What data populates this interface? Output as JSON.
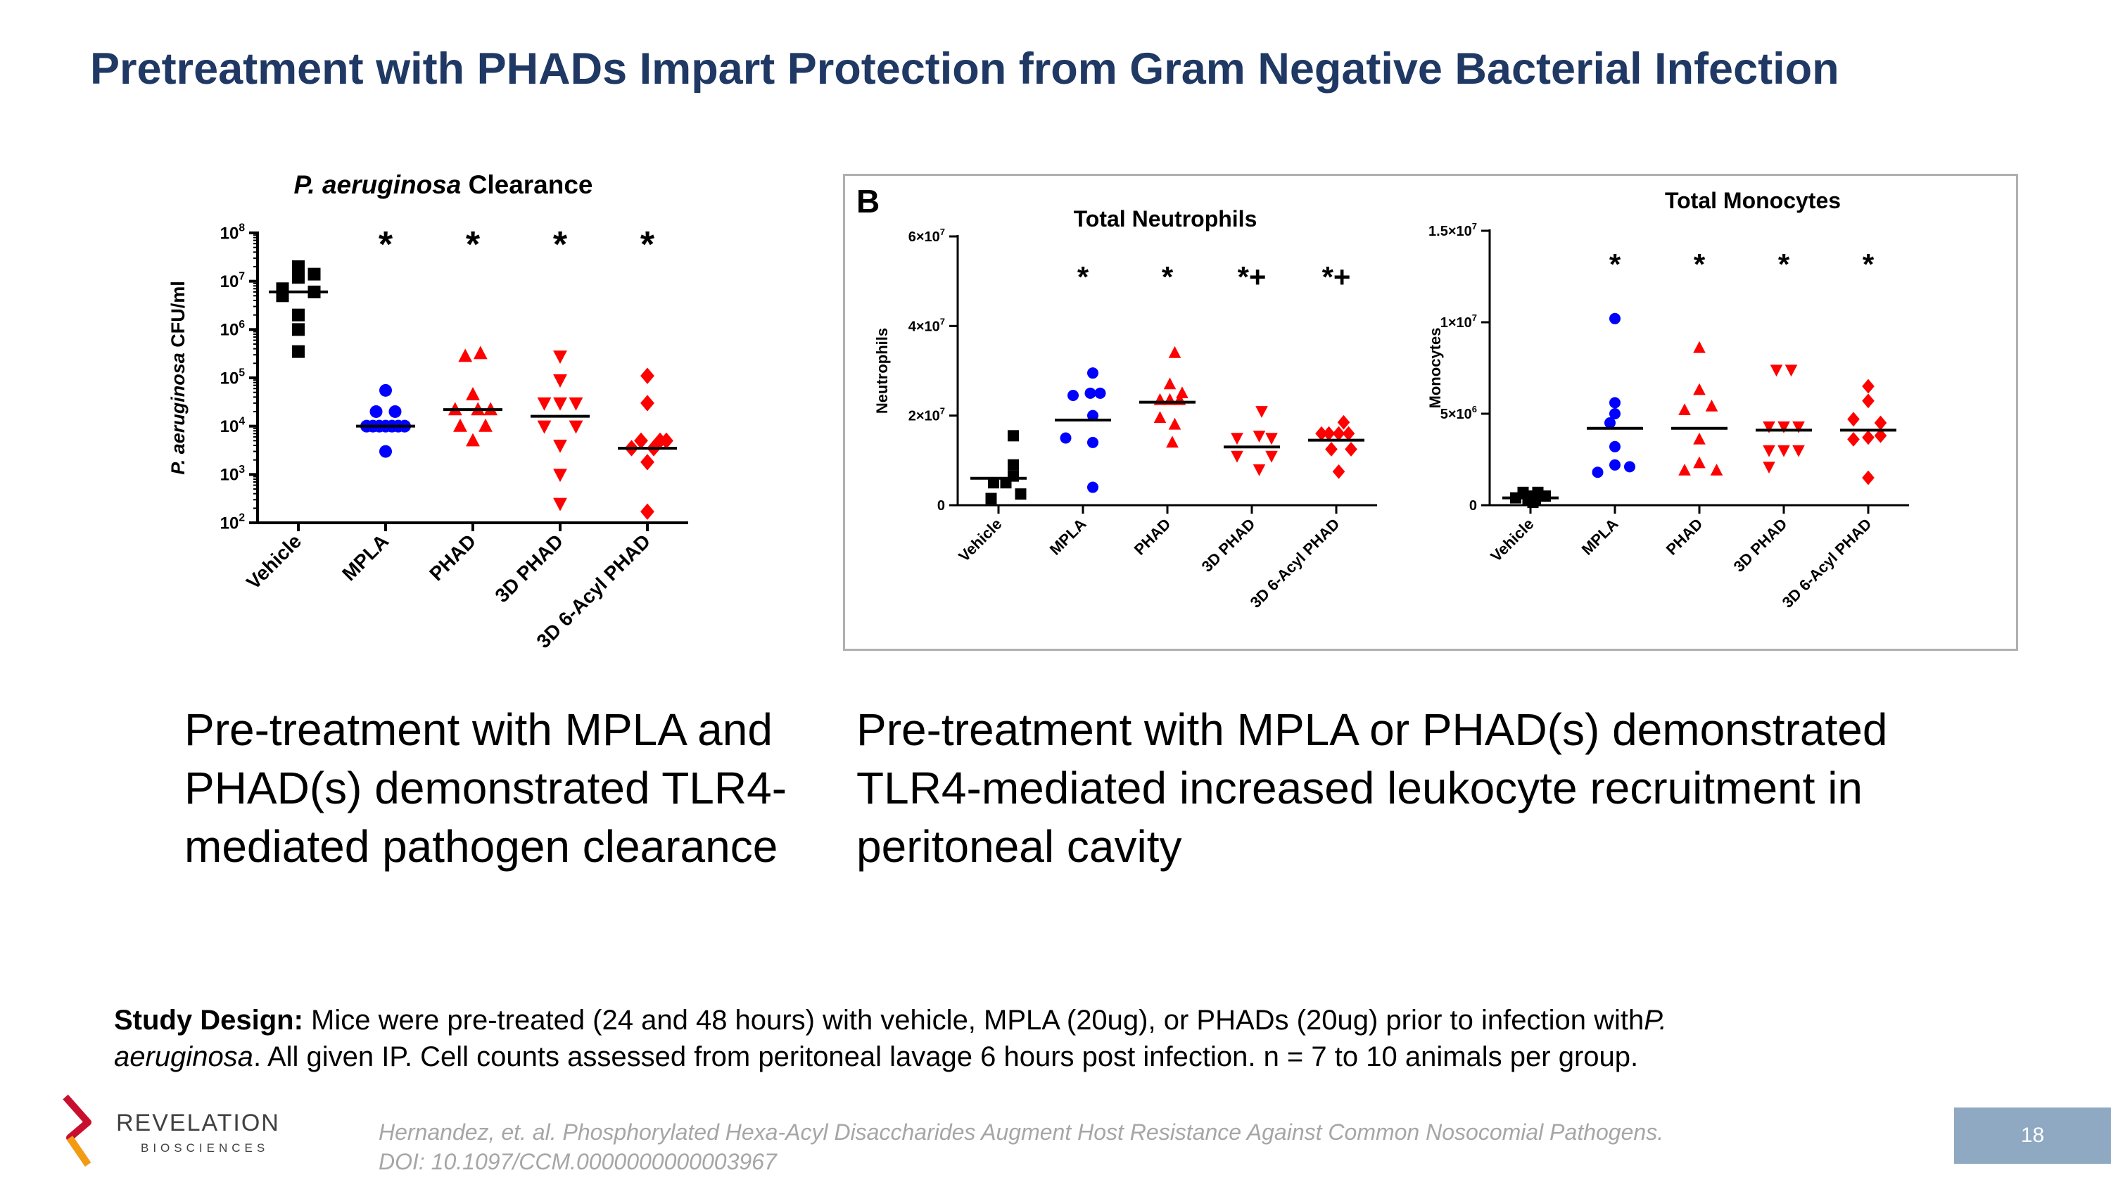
{
  "slide": {
    "title": "Pretreatment with PHADs Impart Protection from Gram Negative Bacterial Infection",
    "caption_left": "Pre-treatment with MPLA and PHAD(s) demonstrated TLR4-mediated pathogen clearance",
    "caption_right": "Pre-treatment with MPLA or PHAD(s) demonstrated TLR4-mediated increased leukocyte recruitment in peritoneal cavity",
    "study_label": "Study Design:",
    "study_text_1": " Mice were pre-treated (24 and 48 hours) with vehicle, MPLA (20ug), or PHADs (20ug) prior to infection with",
    "study_species_1": "P.",
    "study_species_2": "aeruginosa",
    "study_text_2": ".  All given IP.  Cell counts assessed from peritoneal lavage 6 hours post infection. n = 7 to 10 animals per group.",
    "reference_1": "Hernandez, et. al. Phosphorylated Hexa-Acyl Disaccharides Augment Host Resistance Against Common Nosocomial Pathogens.",
    "reference_2": "DOI: 10.1097/CCM.0000000000003967",
    "page_number": "18",
    "logo_name": "REVELATION",
    "logo_sub": "BIOSCIENCES"
  },
  "colors": {
    "title": "#1f3864",
    "vehicle": "#000000",
    "mpla": "#0000ff",
    "phad": "#ff0000"
  },
  "chart_data": [
    {
      "id": "clearance",
      "type": "scatter",
      "title_italic": "P. aeruginosa",
      "title_rest": " Clearance",
      "ylabel_italic": "P. aeruginosa",
      "ylabel_rest": " CFU/ml",
      "yscale": "log",
      "ylim": [
        100,
        100000000
      ],
      "yticks": [
        {
          "v": 100,
          "base": "10",
          "exp": "2"
        },
        {
          "v": 1000,
          "base": "10",
          "exp": "3"
        },
        {
          "v": 10000,
          "base": "10",
          "exp": "4"
        },
        {
          "v": 100000,
          "base": "10",
          "exp": "5"
        },
        {
          "v": 1000000,
          "base": "10",
          "exp": "6"
        },
        {
          "v": 10000000,
          "base": "10",
          "exp": "7"
        },
        {
          "v": 100000000,
          "base": "10",
          "exp": "8"
        }
      ],
      "categories": [
        "Vehicle",
        "MPLA",
        "PHAD",
        "3D PHAD",
        "3D 6-Acyl PHAD"
      ],
      "series": [
        {
          "name": "Vehicle",
          "marker": "square",
          "color": "#000000",
          "median": 6000000,
          "annotation": "",
          "points": [
            [
              -0.25,
              7000000
            ],
            [
              0,
              12000000
            ],
            [
              0.25,
              14000000
            ],
            [
              0,
              20000000
            ],
            [
              -0.25,
              5000000
            ],
            [
              0.25,
              6000000
            ],
            [
              0,
              2000000
            ],
            [
              0,
              1000000
            ],
            [
              0,
              350000
            ]
          ]
        },
        {
          "name": "MPLA",
          "marker": "circle",
          "color": "#0000ff",
          "median": 10000,
          "annotation": "*",
          "points": [
            [
              0,
              55000
            ],
            [
              -0.15,
              20000
            ],
            [
              0.15,
              20000
            ],
            [
              -0.3,
              10000
            ],
            [
              -0.2,
              10000
            ],
            [
              -0.1,
              10000
            ],
            [
              0,
              10000
            ],
            [
              0.1,
              10000
            ],
            [
              0.2,
              10000
            ],
            [
              0.3,
              10000
            ],
            [
              0,
              3000
            ]
          ]
        },
        {
          "name": "PHAD",
          "marker": "triangle-up",
          "color": "#ff0000",
          "median": 22000,
          "annotation": "*",
          "points": [
            [
              -0.12,
              280000
            ],
            [
              0.12,
              320000
            ],
            [
              0,
              45000
            ],
            [
              -0.28,
              22000
            ],
            [
              0.08,
              22000
            ],
            [
              0.28,
              22000
            ],
            [
              -0.2,
              10000
            ],
            [
              0.2,
              10000
            ],
            [
              0,
              5000
            ]
          ]
        },
        {
          "name": "3D PHAD",
          "marker": "triangle-down",
          "color": "#ff0000",
          "median": 16000,
          "annotation": "*",
          "points": [
            [
              0,
              280000
            ],
            [
              0,
              90000
            ],
            [
              -0.25,
              30000
            ],
            [
              0,
              30000
            ],
            [
              0.25,
              30000
            ],
            [
              -0.25,
              10000
            ],
            [
              0.25,
              10000
            ],
            [
              0,
              4000
            ],
            [
              0,
              1000
            ],
            [
              0,
              250
            ]
          ]
        },
        {
          "name": "3D 6-Acyl PHAD",
          "marker": "diamond",
          "color": "#ff0000",
          "median": 3500,
          "annotation": "*",
          "points": [
            [
              0,
              110000
            ],
            [
              0,
              30000
            ],
            [
              -0.1,
              5000
            ],
            [
              0.2,
              5000
            ],
            [
              0.3,
              5000
            ],
            [
              -0.25,
              3500
            ],
            [
              0.1,
              3500
            ],
            [
              0,
              1800
            ],
            [
              0,
              170
            ]
          ]
        }
      ]
    },
    {
      "id": "neutrophils",
      "type": "scatter",
      "panel_label": "B",
      "title": "Total Neutrophils",
      "ylabel": "Neutrophils",
      "yscale": "linear",
      "ylim": [
        0,
        60000000
      ],
      "yticks": [
        {
          "v": 0,
          "base": "0",
          "exp": ""
        },
        {
          "v": 20000000,
          "base": "2×10",
          "exp": "7"
        },
        {
          "v": 40000000,
          "base": "4×10",
          "exp": "7"
        },
        {
          "v": 60000000,
          "base": "6×10",
          "exp": "7"
        }
      ],
      "categories": [
        "Vehicle",
        "MPLA",
        "PHAD",
        "3D PHAD",
        "3D 6-Acyl PHAD"
      ],
      "series": [
        {
          "name": "Vehicle",
          "marker": "square",
          "color": "#000000",
          "median": 6000000,
          "annotation": "",
          "points": [
            [
              0.3,
              15500000
            ],
            [
              0.3,
              9000000
            ],
            [
              0.3,
              6500000
            ],
            [
              -0.1,
              5000000
            ],
            [
              0.15,
              5000000
            ],
            [
              0.45,
              2500000
            ],
            [
              -0.15,
              1500000
            ]
          ]
        },
        {
          "name": "MPLA",
          "marker": "circle",
          "color": "#0000ff",
          "median": 19000000,
          "annotation": "*",
          "points": [
            [
              0.2,
              29500000
            ],
            [
              -0.2,
              24500000
            ],
            [
              0.15,
              25000000
            ],
            [
              0.35,
              25000000
            ],
            [
              0.2,
              20000000
            ],
            [
              -0.35,
              15000000
            ],
            [
              0.2,
              14000000
            ],
            [
              0.2,
              4000000
            ]
          ]
        },
        {
          "name": "PHAD",
          "marker": "triangle-up",
          "color": "#ff0000",
          "median": 23000000,
          "annotation": "*",
          "points": [
            [
              0.15,
              34000000
            ],
            [
              0.05,
              27000000
            ],
            [
              0.3,
              25000000
            ],
            [
              -0.15,
              23500000
            ],
            [
              0.05,
              23500000
            ],
            [
              0.25,
              23500000
            ],
            [
              -0.15,
              19500000
            ],
            [
              0.15,
              18000000
            ],
            [
              0.1,
              14000000
            ]
          ]
        },
        {
          "name": "3D PHAD",
          "marker": "triangle-down",
          "color": "#ff0000",
          "median": 13000000,
          "annotation": "*+",
          "points": [
            [
              0.2,
              21000000
            ],
            [
              0.15,
              15500000
            ],
            [
              -0.3,
              15000000
            ],
            [
              0.4,
              15000000
            ],
            [
              -0.3,
              11000000
            ],
            [
              0.4,
              11000000
            ],
            [
              0.15,
              8000000
            ]
          ]
        },
        {
          "name": "3D 6-Acyl PHAD",
          "marker": "diamond",
          "color": "#ff0000",
          "median": 14500000,
          "annotation": "*+",
          "points": [
            [
              0.15,
              18500000
            ],
            [
              -0.3,
              16000000
            ],
            [
              -0.15,
              16000000
            ],
            [
              0.05,
              16000000
            ],
            [
              0.25,
              16000000
            ],
            [
              -0.1,
              12500000
            ],
            [
              0.3,
              12500000
            ],
            [
              0.05,
              7500000
            ]
          ]
        }
      ]
    },
    {
      "id": "monocytes",
      "type": "scatter",
      "title": "Total Monocytes",
      "ylabel": "Monocytes",
      "yscale": "linear",
      "ylim": [
        0,
        15000000
      ],
      "yticks": [
        {
          "v": 0,
          "base": "0",
          "exp": ""
        },
        {
          "v": 5000000,
          "base": "5×10",
          "exp": "6"
        },
        {
          "v": 10000000,
          "base": "1×10",
          "exp": "7"
        },
        {
          "v": 15000000,
          "base": "1.5×10",
          "exp": "7"
        }
      ],
      "categories": [
        "Vehicle",
        "MPLA",
        "PHAD",
        "3D PHAD",
        "3D 6-Acyl PHAD"
      ],
      "series": [
        {
          "name": "Vehicle",
          "marker": "square",
          "color": "#000000",
          "median": 400000,
          "annotation": "",
          "points": [
            [
              -0.3,
              400000
            ],
            [
              -0.15,
              700000
            ],
            [
              0,
              500000
            ],
            [
              0.15,
              700000
            ],
            [
              0.3,
              500000
            ],
            [
              -0.05,
              300000
            ],
            [
              0.1,
              300000
            ],
            [
              0.05,
              150000
            ]
          ]
        },
        {
          "name": "MPLA",
          "marker": "circle",
          "color": "#0000ff",
          "median": 4200000,
          "annotation": "*",
          "points": [
            [
              0,
              10200000
            ],
            [
              0,
              5600000
            ],
            [
              0,
              5000000
            ],
            [
              -0.1,
              4500000
            ],
            [
              0,
              3200000
            ],
            [
              -0.35,
              1800000
            ],
            [
              0,
              2200000
            ],
            [
              0.3,
              2100000
            ]
          ]
        },
        {
          "name": "PHAD",
          "marker": "triangle-up",
          "color": "#ff0000",
          "median": 4200000,
          "annotation": "*",
          "points": [
            [
              0,
              8600000
            ],
            [
              0,
              6300000
            ],
            [
              -0.3,
              5200000
            ],
            [
              0.25,
              5400000
            ],
            [
              0,
              3600000
            ],
            [
              0,
              2300000
            ],
            [
              -0.3,
              1900000
            ],
            [
              0.35,
              1900000
            ]
          ]
        },
        {
          "name": "3D PHAD",
          "marker": "triangle-down",
          "color": "#ff0000",
          "median": 4100000,
          "annotation": "*",
          "points": [
            [
              -0.15,
              7400000
            ],
            [
              0.15,
              7400000
            ],
            [
              -0.3,
              4300000
            ],
            [
              0,
              4300000
            ],
            [
              0.3,
              4300000
            ],
            [
              -0.3,
              3000000
            ],
            [
              0,
              3000000
            ],
            [
              0.3,
              3000000
            ],
            [
              -0.3,
              2100000
            ]
          ]
        },
        {
          "name": "3D 6-Acyl PHAD",
          "marker": "diamond",
          "color": "#ff0000",
          "median": 4100000,
          "annotation": "*",
          "points": [
            [
              0,
              6500000
            ],
            [
              0,
              5700000
            ],
            [
              -0.3,
              4700000
            ],
            [
              0.25,
              4500000
            ],
            [
              -0.3,
              3600000
            ],
            [
              0,
              3700000
            ],
            [
              0.25,
              3800000
            ],
            [
              0,
              1500000
            ]
          ]
        }
      ]
    }
  ]
}
